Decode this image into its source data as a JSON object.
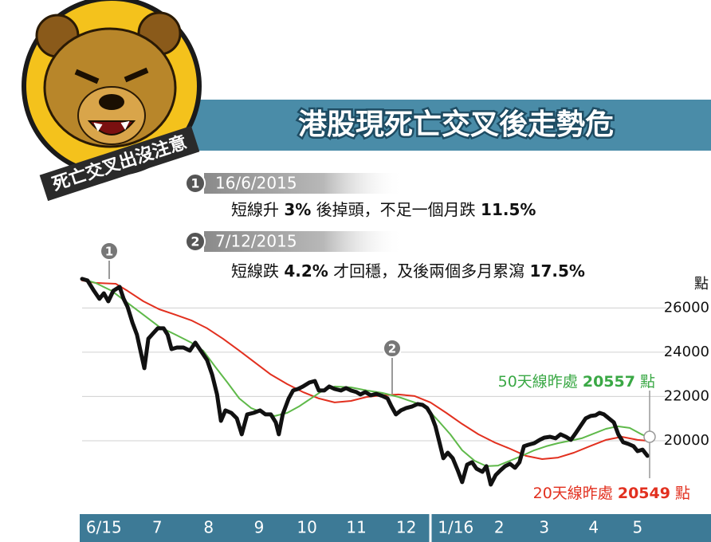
{
  "header": {
    "title": "港股現死亡交叉後走勢危",
    "badge": "死亡交叉出沒注意"
  },
  "notes": [
    {
      "number": "1",
      "date": "16/6/2015",
      "text": [
        "短線升 ",
        "3%",
        " 後掉頭，不足一個月跌 ",
        "11.5%"
      ]
    },
    {
      "number": "2",
      "date": "7/12/2015",
      "text": [
        "短線跌 ",
        "4.2%",
        " 才回穩，及後兩個多月累瀉 ",
        "17.5%"
      ]
    }
  ],
  "chart_data": {
    "type": "line",
    "y_label": "點",
    "xlim": [
      0,
      12.6
    ],
    "xticks": [
      {
        "value": 0.44,
        "label": "6/15"
      },
      {
        "value": 1.52,
        "label": "7"
      },
      {
        "value": 2.56,
        "label": "8"
      },
      {
        "value": 3.58,
        "label": "9"
      },
      {
        "value": 4.55,
        "label": "10"
      },
      {
        "value": 5.55,
        "label": "11"
      },
      {
        "value": 6.56,
        "label": "12"
      },
      {
        "value": 7.56,
        "label": "1/16"
      },
      {
        "value": 8.44,
        "label": "2"
      },
      {
        "value": 9.35,
        "label": "3"
      },
      {
        "value": 10.35,
        "label": "4"
      },
      {
        "value": 11.24,
        "label": "5"
      }
    ],
    "ylim": [
      17000,
      27700
    ],
    "yticks": [
      20000,
      22000,
      24000,
      26000
    ],
    "grid": true,
    "series": [
      {
        "color": "#111111",
        "x": [
          0,
          0.11,
          0.24,
          0.35,
          0.44,
          0.53,
          0.63,
          0.76,
          0.84,
          0.92,
          1.02,
          1.11,
          1.18,
          1.26,
          1.34,
          1.44,
          1.53,
          1.65,
          1.73,
          1.81,
          1.92,
          2.05,
          2.18,
          2.29,
          2.4,
          2.53,
          2.63,
          2.73,
          2.81,
          2.9,
          3.02,
          3.13,
          3.23,
          3.34,
          3.47,
          3.6,
          3.71,
          3.82,
          3.92,
          3.98,
          4.06,
          4.18,
          4.27,
          4.37,
          4.47,
          4.6,
          4.71,
          4.79,
          4.9,
          5.0,
          5.11,
          5.24,
          5.34,
          5.44,
          5.55,
          5.63,
          5.73,
          5.84,
          5.95,
          6.08,
          6.18,
          6.26,
          6.35,
          6.45,
          6.56,
          6.68,
          6.79,
          6.89,
          6.98,
          7.06,
          7.15,
          7.23,
          7.31,
          7.4,
          7.5,
          7.6,
          7.69,
          7.79,
          7.89,
          7.98,
          8.1,
          8.18,
          8.27,
          8.37,
          8.47,
          8.56,
          8.66,
          8.76,
          8.85,
          8.94,
          9.03,
          9.15,
          9.26,
          9.35,
          9.47,
          9.58,
          9.68,
          9.79,
          9.89,
          9.98,
          10.08,
          10.19,
          10.29,
          10.39,
          10.47,
          10.56,
          10.66,
          10.76,
          10.85,
          10.95,
          11.05,
          11.16,
          11.24,
          11.34,
          11.44
        ],
        "values": [
          27310,
          27240,
          26770,
          26410,
          26660,
          26300,
          26770,
          26950,
          26410,
          26050,
          25330,
          24790,
          24070,
          23280,
          24610,
          24860,
          25080,
          25080,
          24790,
          24140,
          24210,
          24210,
          24070,
          24430,
          24070,
          23640,
          22990,
          22090,
          20900,
          21370,
          21260,
          21010,
          20290,
          21190,
          21260,
          21370,
          21190,
          21190,
          20830,
          20290,
          21190,
          21910,
          22270,
          22340,
          22450,
          22630,
          22700,
          22270,
          22270,
          22450,
          22340,
          22270,
          22380,
          22270,
          22200,
          22090,
          22200,
          22050,
          22120,
          22020,
          21910,
          21550,
          21190,
          21370,
          21480,
          21550,
          21660,
          21620,
          21480,
          21190,
          20650,
          19930,
          19210,
          19460,
          19210,
          18670,
          18130,
          18920,
          19030,
          18740,
          18600,
          18850,
          18020,
          18450,
          18670,
          18850,
          18960,
          18780,
          19030,
          19750,
          19820,
          19890,
          20040,
          20140,
          20180,
          20110,
          20290,
          20180,
          20040,
          20320,
          20650,
          21010,
          21120,
          21150,
          21260,
          21190,
          21010,
          20830,
          20290,
          19930,
          19860,
          19750,
          19530,
          19600,
          19320
        ]
      },
      {
        "color": "#5fb94a",
        "x": [
          0,
          0.27,
          0.6,
          0.92,
          1.24,
          1.56,
          1.89,
          2.21,
          2.45,
          2.69,
          2.94,
          3.18,
          3.42,
          3.66,
          3.9,
          4.15,
          4.39,
          4.63,
          4.87,
          5.11,
          5.44,
          5.76,
          6.08,
          6.4,
          6.73,
          6.97,
          7.21,
          7.45,
          7.69,
          7.94,
          8.18,
          8.42,
          8.66,
          8.9,
          9.15,
          9.39,
          9.63,
          9.87,
          10.11,
          10.35,
          10.6,
          10.84,
          11.08,
          11.32,
          11.44
        ],
        "values": [
          27310,
          27130,
          26770,
          26230,
          25690,
          25150,
          24790,
          24430,
          24070,
          23350,
          22630,
          21910,
          21480,
          21260,
          21120,
          21260,
          21550,
          21910,
          22270,
          22450,
          22410,
          22270,
          22160,
          21980,
          21730,
          21480,
          20900,
          20290,
          19570,
          19100,
          18850,
          18880,
          19100,
          19320,
          19570,
          19750,
          19890,
          20000,
          20110,
          20320,
          20540,
          20650,
          20580,
          20290,
          20180
        ]
      },
      {
        "color": "#e2301f",
        "x": [
          0,
          0.27,
          0.68,
          0.92,
          1.24,
          1.56,
          1.89,
          2.21,
          2.53,
          2.85,
          3.18,
          3.5,
          3.82,
          4.15,
          4.47,
          4.79,
          5.11,
          5.44,
          5.76,
          6.08,
          6.4,
          6.73,
          7.05,
          7.37,
          7.69,
          8.02,
          8.34,
          8.66,
          8.98,
          9.31,
          9.63,
          9.95,
          10.27,
          10.6,
          10.92,
          11.24,
          11.44
        ],
        "values": [
          27240,
          27130,
          27090,
          26770,
          26300,
          25940,
          25690,
          25440,
          25080,
          24610,
          24070,
          23530,
          22990,
          22560,
          22200,
          21910,
          21730,
          21800,
          21980,
          22050,
          22090,
          22020,
          21730,
          21260,
          20760,
          20290,
          19930,
          19640,
          19320,
          19170,
          19240,
          19460,
          19750,
          20040,
          20180,
          20040,
          20000
        ]
      }
    ],
    "annotations": [
      {
        "text": "50天線昨處 ",
        "value": 20557,
        "unit": " 點",
        "color": "#3aa845"
      },
      {
        "text": "20天線昨處 ",
        "value": 20549,
        "unit": " 點",
        "color": "#e2301f"
      }
    ]
  }
}
